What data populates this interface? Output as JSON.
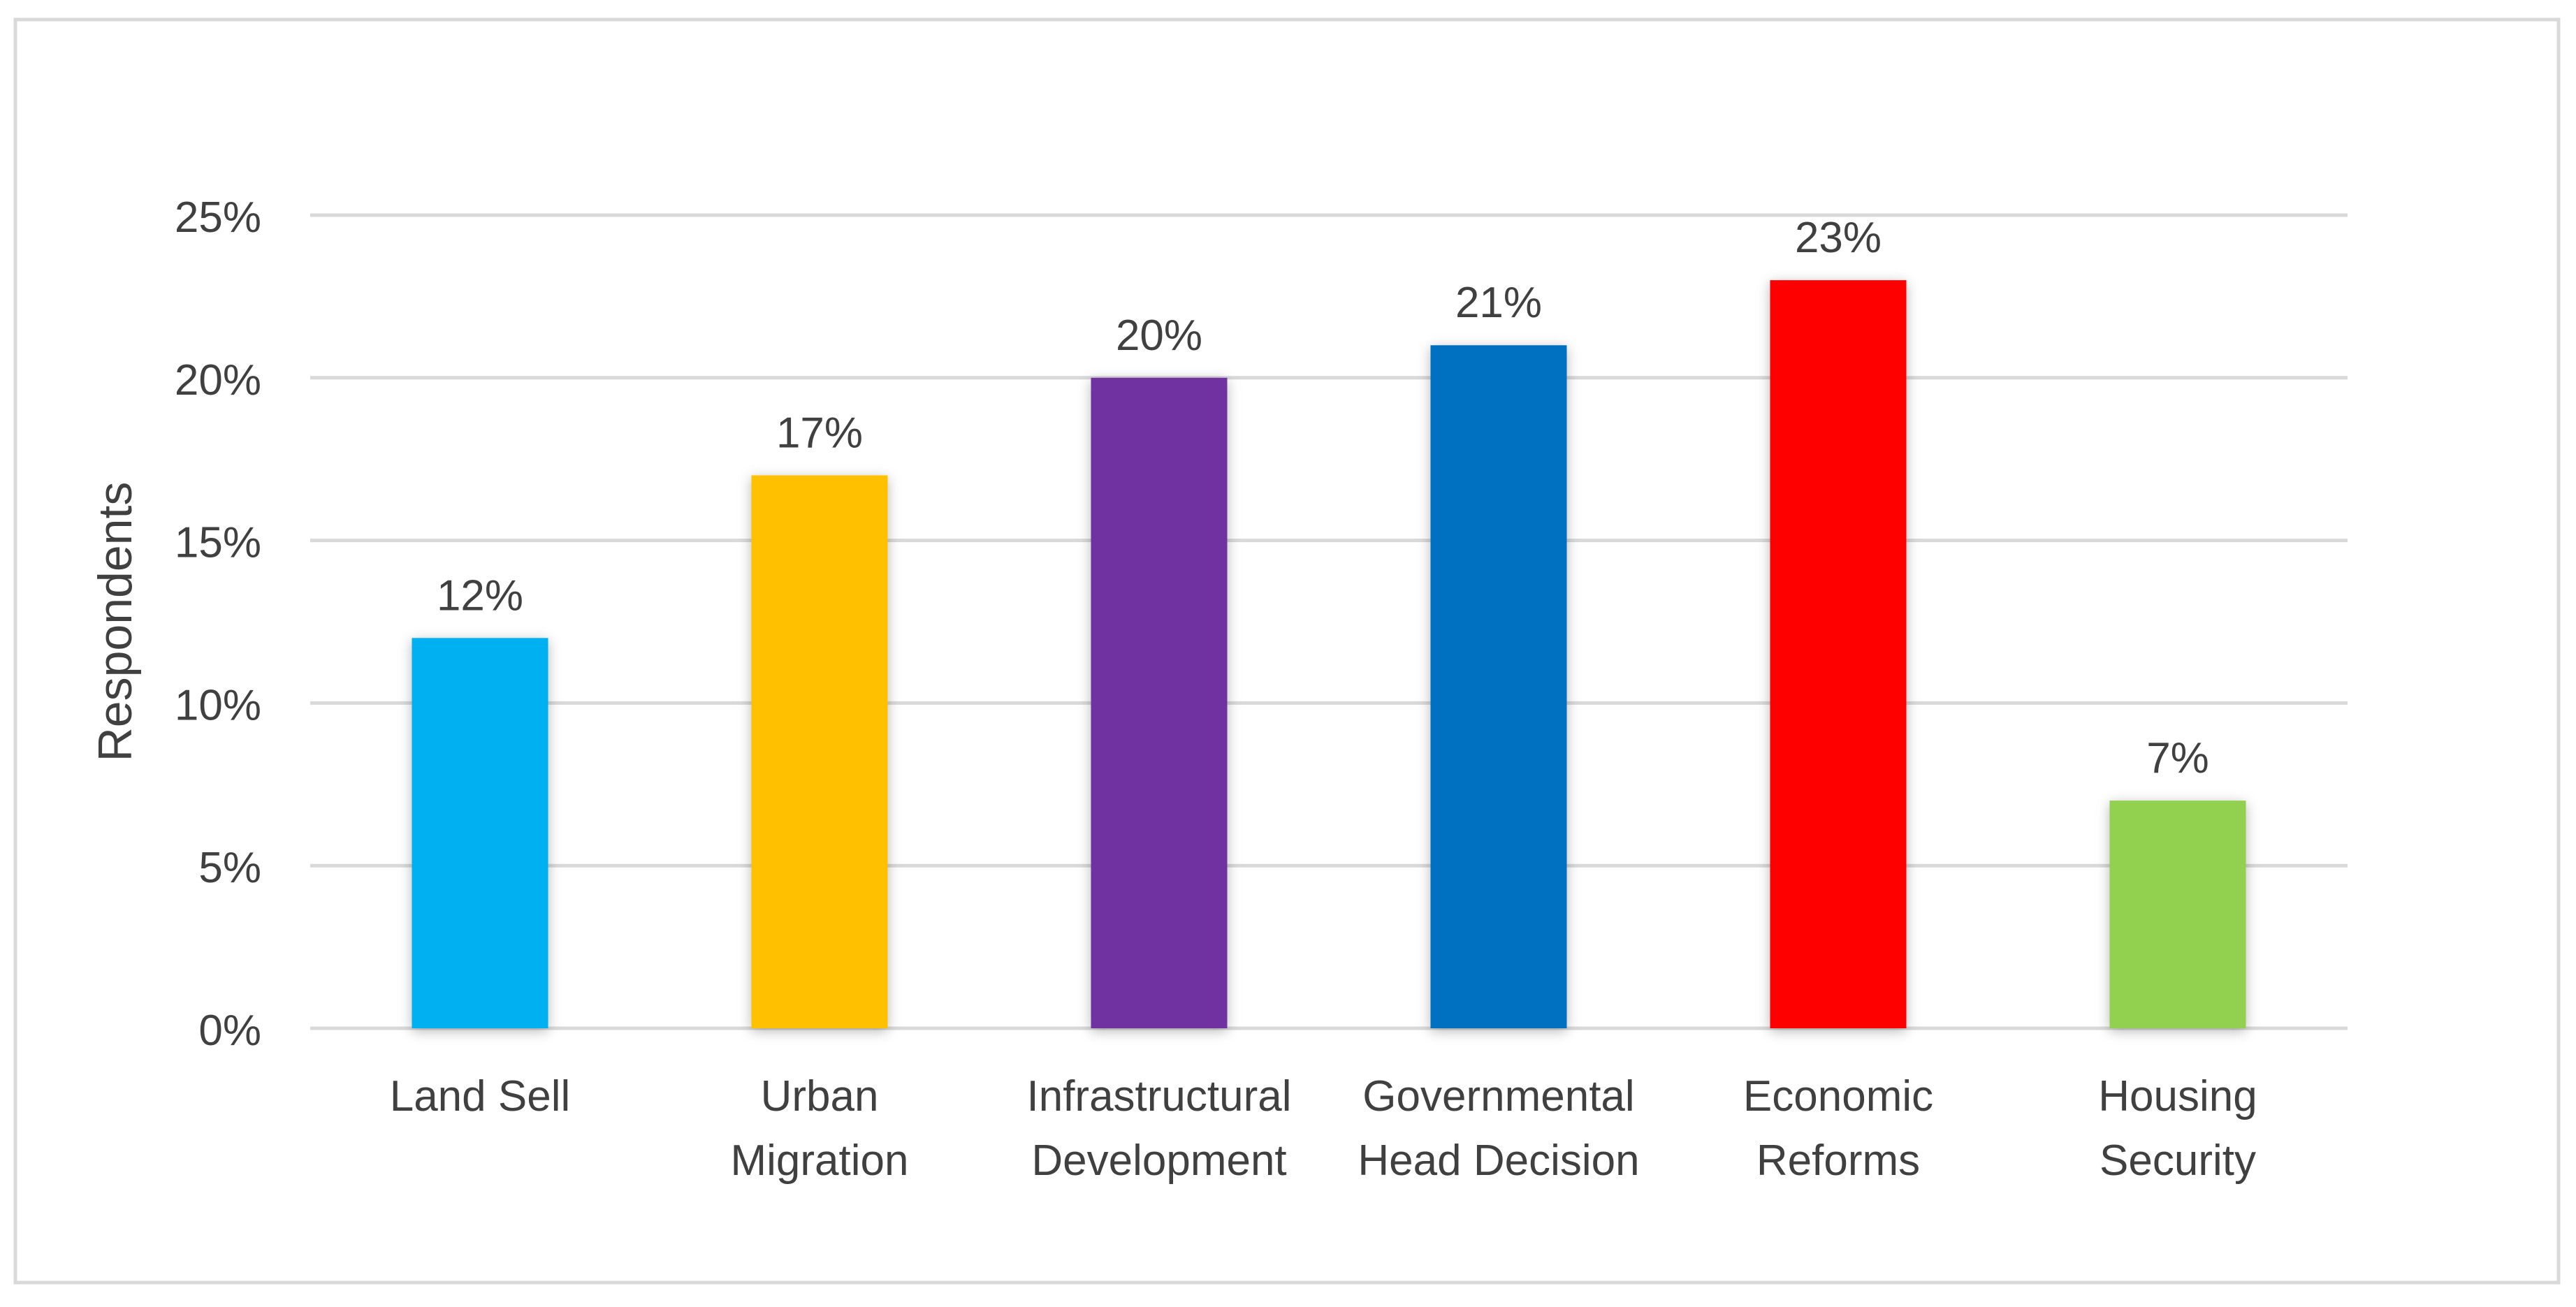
{
  "chart_data": {
    "type": "bar",
    "title": "",
    "xlabel": "",
    "ylabel": "Respondents",
    "ylim": [
      0,
      25
    ],
    "yticks": [
      0,
      5,
      10,
      15,
      20,
      25
    ],
    "ytick_labels": [
      "0%",
      "5%",
      "10%",
      "15%",
      "20%",
      "25%"
    ],
    "grid": true,
    "legend": "none",
    "categories": [
      [
        "Land Sell"
      ],
      [
        "Urban",
        "Migration"
      ],
      [
        "Infrastructural",
        "Development"
      ],
      [
        "Governmental",
        "Head Decision"
      ],
      [
        "Economic",
        "Reforms"
      ],
      [
        "Housing",
        "Security"
      ]
    ],
    "values": [
      12,
      17,
      20,
      21,
      23,
      7
    ],
    "data_labels": [
      "12%",
      "17%",
      "20%",
      "21%",
      "23%",
      "7%"
    ],
    "colors": [
      "#00B0F0",
      "#FFC000",
      "#7030A0",
      "#0070C0",
      "#FF0000",
      "#92D050"
    ]
  }
}
